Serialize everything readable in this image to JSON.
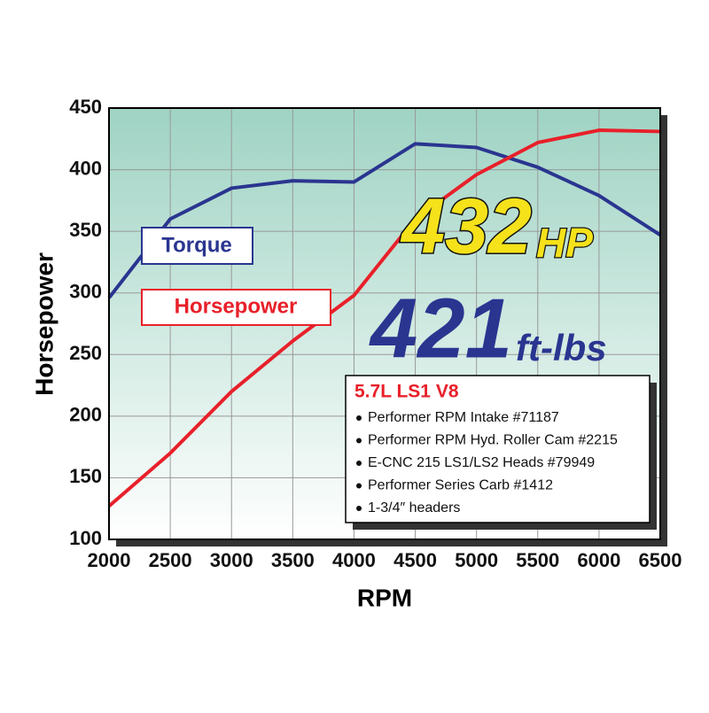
{
  "chart_data": {
    "type": "line",
    "x": [
      2000,
      2500,
      3000,
      3500,
      4000,
      4500,
      5000,
      5500,
      6000,
      6500
    ],
    "series": [
      {
        "name": "Torque",
        "color": "#2a3590",
        "values": [
          296,
          360,
          385,
          391,
          390,
          421,
          418,
          402,
          379,
          347
        ]
      },
      {
        "name": "Horsepower",
        "color": "#e8202a",
        "values": [
          127,
          170,
          220,
          261,
          298,
          360,
          396,
          422,
          432,
          431
        ]
      }
    ],
    "xlabel": "RPM",
    "ylabel": "Horsepower",
    "xlim": [
      2000,
      6500
    ],
    "ylim": [
      100,
      450
    ],
    "xticks": [
      2000,
      2500,
      3000,
      3500,
      4000,
      4500,
      5000,
      5500,
      6000,
      6500
    ],
    "yticks": [
      100,
      150,
      200,
      250,
      300,
      350,
      400,
      450
    ],
    "grid": true,
    "headline_hp": {
      "number": "432",
      "unit": "HP"
    },
    "headline_torque": {
      "number": "421",
      "unit": "ft-lbs"
    },
    "info_box": {
      "title": "5.7L LS1 V8",
      "items": [
        "Performer RPM Intake #71187",
        "Performer RPM Hyd. Roller Cam #2215",
        "E-CNC 215 LS1/LS2 Heads #79949",
        "Performer Series Carb #1412",
        "1-3/4″ headers"
      ]
    }
  }
}
